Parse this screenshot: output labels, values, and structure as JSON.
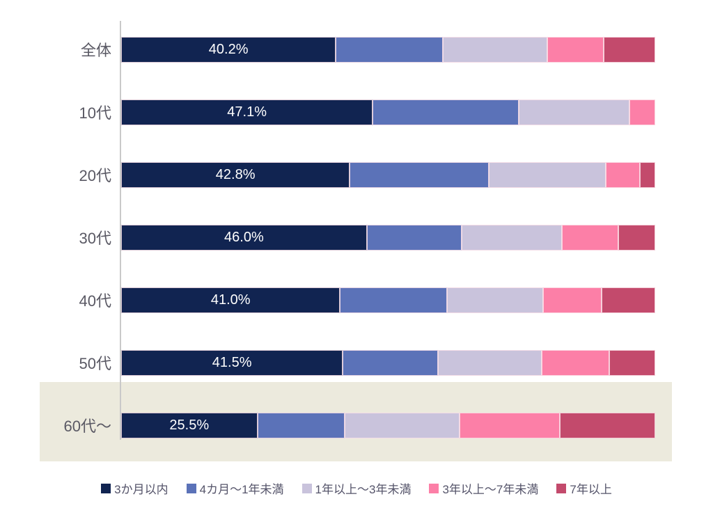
{
  "chart_data": {
    "type": "bar",
    "orientation": "horizontal",
    "stacked": true,
    "categories": [
      "全体",
      "10代",
      "20代",
      "30代",
      "40代",
      "50代",
      "60代～"
    ],
    "series": [
      {
        "name": "3か月以内",
        "color": "#112451",
        "values": [
          40.2,
          47.1,
          42.8,
          46.0,
          41.0,
          41.5,
          25.5
        ]
      },
      {
        "name": "4カ月～1年未満",
        "color": "#5B72B8",
        "values": [
          20.0,
          27.3,
          26.0,
          17.7,
          20.0,
          17.8,
          16.4
        ]
      },
      {
        "name": "1年以上～3年未満",
        "color": "#C9C3DC",
        "values": [
          19.6,
          20.8,
          21.9,
          18.8,
          18.0,
          19.4,
          21.5
        ]
      },
      {
        "name": "3年以上～7年未満",
        "color": "#FC7FA7",
        "values": [
          10.5,
          4.8,
          6.5,
          10.6,
          10.9,
          12.7,
          18.7
        ]
      },
      {
        "name": "7年以上",
        "color": "#C34A6C",
        "values": [
          9.7,
          0.0,
          2.8,
          6.9,
          10.1,
          8.6,
          17.9
        ]
      }
    ],
    "bar_labels": [
      "40.2%",
      "47.1%",
      "42.8%",
      "46.0%",
      "41.0%",
      "41.5%",
      "25.5%"
    ],
    "xlim": [
      0,
      100
    ],
    "grid": false,
    "legend_position": "bottom",
    "highlighted_category": "60代～",
    "highlight_color": "#ECEADD",
    "axis_line_color": "#C9C9C9",
    "label_text_color": "#5A5964",
    "legend_text_color": "#55546A"
  }
}
